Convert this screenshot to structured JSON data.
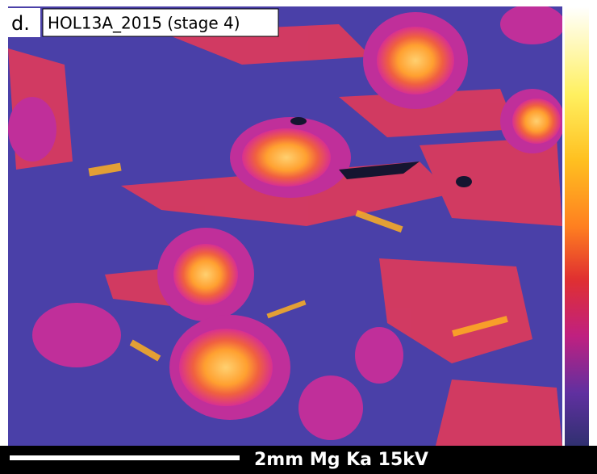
{
  "label": {
    "panel": "d.",
    "sample": "HOL13A_2015 (stage 4)"
  },
  "scale_bar": {
    "text": "2mm Mg Ka 15kV"
  }
}
